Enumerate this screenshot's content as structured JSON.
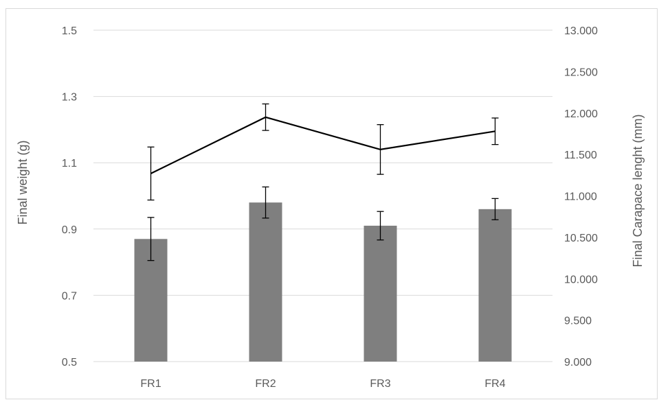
{
  "chart_data": {
    "type": "bar",
    "categories": [
      "FR1",
      "FR2",
      "FR3",
      "FR4"
    ],
    "ylabel": "Final weight (g)",
    "y2label": "Final Carapace lenght (mm)",
    "ylim": [
      0.5,
      1.5
    ],
    "y2lim": [
      9.0,
      13.0
    ],
    "yticks": [
      "0.5",
      "0.7",
      "0.9",
      "1.1",
      "1.3",
      "1.5"
    ],
    "y2ticks": [
      "9.000",
      "9.500",
      "10.000",
      "10.500",
      "11.000",
      "11.500",
      "12.000",
      "12.500",
      "13.000"
    ],
    "grid": true,
    "series": [
      {
        "kind": "bar",
        "axis": "left",
        "color": "#7f7f7f",
        "values": [
          0.87,
          0.98,
          0.91,
          0.96
        ],
        "error": [
          0.065,
          0.047,
          0.043,
          0.032
        ]
      },
      {
        "kind": "line",
        "axis": "right",
        "color": "#000000",
        "values": [
          11.27,
          11.95,
          11.56,
          11.78
        ],
        "error": [
          0.32,
          0.16,
          0.3,
          0.16
        ]
      }
    ]
  }
}
